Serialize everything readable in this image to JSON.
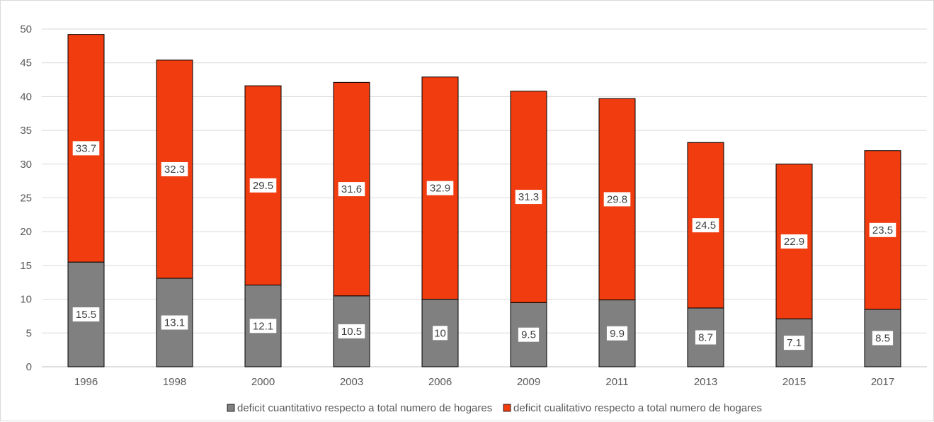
{
  "chart_data": {
    "type": "bar",
    "stacked": true,
    "categories": [
      "1996",
      "1998",
      "2000",
      "2003",
      "2006",
      "2009",
      "2011",
      "2013",
      "2015",
      "2017"
    ],
    "series": [
      {
        "name": "deficit cuantitativo respecto a total numero de hogares",
        "color": "#808080",
        "values": [
          15.5,
          13.1,
          12.1,
          10.5,
          10,
          9.5,
          9.9,
          8.7,
          7.1,
          8.5
        ],
        "labels": [
          "15.5",
          "13.1",
          "12.1",
          "10.5",
          "10",
          "9.5",
          "9.9",
          "8.7",
          "7.1",
          "8.5"
        ]
      },
      {
        "name": "deficit cualitativo respecto a total numero de hogares",
        "color": "#f03c0f",
        "values": [
          33.7,
          32.3,
          29.5,
          31.6,
          32.9,
          31.3,
          29.8,
          24.5,
          22.9,
          23.5
        ],
        "labels": [
          "33.7",
          "32.3",
          "29.5",
          "31.6",
          "32.9",
          "31.3",
          "29.8",
          "24.5",
          "22.9",
          "23.5"
        ]
      }
    ],
    "ylim": [
      0,
      50
    ],
    "yticks": [
      "0",
      "5",
      "10",
      "15",
      "20",
      "25",
      "30",
      "35",
      "40",
      "45",
      "50"
    ],
    "grid": true,
    "legend_position": "bottom"
  }
}
